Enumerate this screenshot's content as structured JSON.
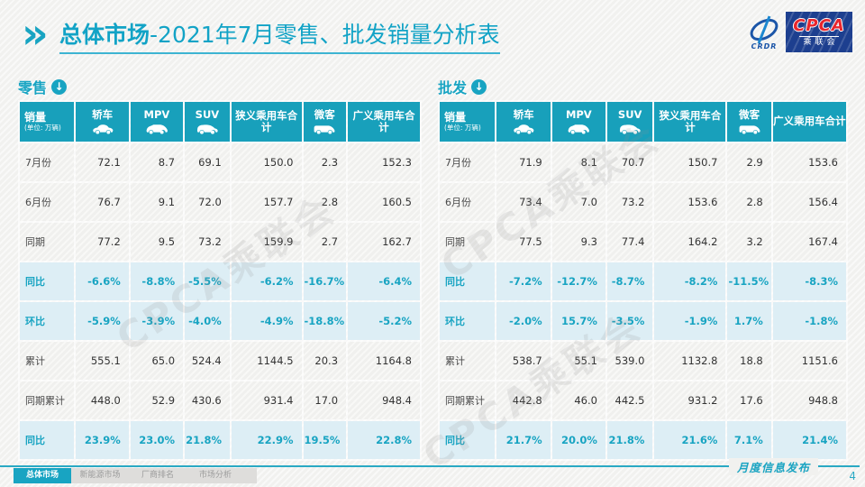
{
  "title": {
    "highlight": "总体市场",
    "rest": "-2021年7月零售、批发销量分析表"
  },
  "logo": {
    "cpca": "CPCA",
    "sub_cn": "乘联会",
    "left_text": "CRDR"
  },
  "watermark": "CPCA乘联会",
  "unit": {
    "label": "销量",
    "note": "(单位: 万辆)"
  },
  "tables": [
    {
      "section_label": "零售",
      "columns": [
        {
          "label": "轿车",
          "icon": "sedan-icon"
        },
        {
          "label": "MPV",
          "icon": "mpv-icon"
        },
        {
          "label": "SUV",
          "icon": "suv-icon"
        },
        {
          "label": "狭义乘用车合计",
          "icon": ""
        },
        {
          "label": "微客",
          "icon": "van-icon"
        },
        {
          "label": "广义乘用车合计",
          "icon": ""
        }
      ],
      "rows": [
        {
          "label": "7月份",
          "highlight": false,
          "values": [
            "72.1",
            "8.7",
            "69.1",
            "150.0",
            "2.3",
            "152.3"
          ]
        },
        {
          "label": "6月份",
          "highlight": false,
          "values": [
            "76.7",
            "9.1",
            "72.0",
            "157.7",
            "2.8",
            "160.5"
          ]
        },
        {
          "label": "同期",
          "highlight": false,
          "values": [
            "77.2",
            "9.5",
            "73.2",
            "159.9",
            "2.7",
            "162.7"
          ]
        },
        {
          "label": "同比",
          "highlight": true,
          "values": [
            "-6.6%",
            "-8.8%",
            "-5.5%",
            "-6.2%",
            "-16.7%",
            "-6.4%"
          ]
        },
        {
          "label": "环比",
          "highlight": true,
          "values": [
            "-5.9%",
            "-3.9%",
            "-4.0%",
            "-4.9%",
            "-18.8%",
            "-5.2%"
          ]
        },
        {
          "label": "累计",
          "highlight": false,
          "values": [
            "555.1",
            "65.0",
            "524.4",
            "1144.5",
            "20.3",
            "1164.8"
          ]
        },
        {
          "label": "同期累计",
          "highlight": false,
          "values": [
            "448.0",
            "52.9",
            "430.6",
            "931.4",
            "17.0",
            "948.4"
          ]
        },
        {
          "label": "同比",
          "highlight": true,
          "values": [
            "23.9%",
            "23.0%",
            "21.8%",
            "22.9%",
            "19.5%",
            "22.8%"
          ]
        }
      ]
    },
    {
      "section_label": "批发",
      "columns": [
        {
          "label": "轿车",
          "icon": "sedan-icon"
        },
        {
          "label": "MPV",
          "icon": "mpv-icon"
        },
        {
          "label": "SUV",
          "icon": "suv-icon"
        },
        {
          "label": "狭义乘用车合计",
          "icon": ""
        },
        {
          "label": "微客",
          "icon": "van-icon"
        },
        {
          "label": "广义乘用车合计",
          "icon": ""
        }
      ],
      "rows": [
        {
          "label": "7月份",
          "highlight": false,
          "values": [
            "71.9",
            "8.1",
            "70.7",
            "150.7",
            "2.9",
            "153.6"
          ]
        },
        {
          "label": "6月份",
          "highlight": false,
          "values": [
            "73.4",
            "7.0",
            "73.2",
            "153.6",
            "2.8",
            "156.4"
          ]
        },
        {
          "label": "同期",
          "highlight": false,
          "values": [
            "77.5",
            "9.3",
            "77.4",
            "164.2",
            "3.2",
            "167.4"
          ]
        },
        {
          "label": "同比",
          "highlight": true,
          "values": [
            "-7.2%",
            "-12.7%",
            "-8.7%",
            "-8.2%",
            "-11.5%",
            "-8.3%"
          ]
        },
        {
          "label": "环比",
          "highlight": true,
          "values": [
            "-2.0%",
            "15.7%",
            "-3.5%",
            "-1.9%",
            "1.7%",
            "-1.8%"
          ]
        },
        {
          "label": "累计",
          "highlight": false,
          "values": [
            "538.7",
            "55.1",
            "539.0",
            "1132.8",
            "18.8",
            "1151.6"
          ]
        },
        {
          "label": "同期累计",
          "highlight": false,
          "values": [
            "442.8",
            "46.0",
            "442.5",
            "931.2",
            "17.6",
            "948.8"
          ]
        },
        {
          "label": "同比",
          "highlight": true,
          "values": [
            "21.7%",
            "20.0%",
            "21.8%",
            "21.6%",
            "7.1%",
            "21.4%"
          ]
        }
      ]
    }
  ],
  "footer": {
    "tabs": [
      {
        "label": "总体市场",
        "active": true
      },
      {
        "label": "新能源市场",
        "active": false
      },
      {
        "label": "厂商排名",
        "active": false
      },
      {
        "label": "市场分析",
        "active": false
      }
    ],
    "stamp": "月度信息发布",
    "page": "4"
  },
  "colors": {
    "teal": "#18a0bb",
    "highlight_bg": "#ddeef5",
    "navy": "#1d3f8f",
    "red": "#e8262d"
  }
}
